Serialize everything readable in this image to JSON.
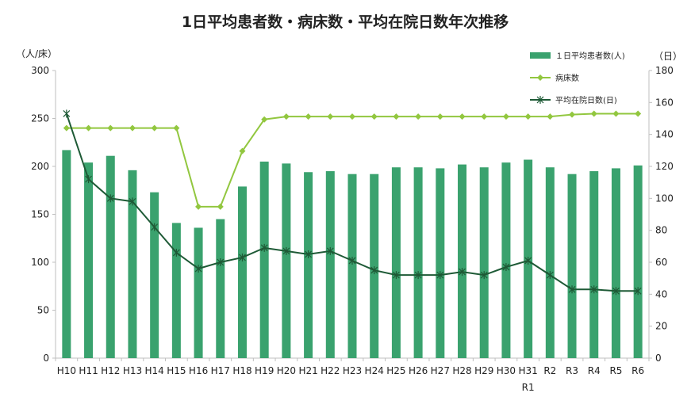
{
  "chart_data": {
    "type": "bar+line",
    "title": "1日平均患者数・病床数・平均在院日数年次推移",
    "left_axis_unit": "（人/床）",
    "right_axis_unit": "（日）",
    "left_ylim": [
      0,
      300
    ],
    "left_ticks": [
      "0",
      "50",
      "100",
      "150",
      "200",
      "250",
      "300"
    ],
    "right_ylim": [
      0,
      180
    ],
    "right_ticks": [
      "0",
      "20",
      "40",
      "60",
      "80",
      "100",
      "120",
      "140",
      "160",
      "180"
    ],
    "categories": [
      "H10",
      "H11",
      "H12",
      "H13",
      "H14",
      "H15",
      "H16",
      "H17",
      "H18",
      "H19",
      "H20",
      "H21",
      "H22",
      "H23",
      "H24",
      "H25",
      "H26",
      "H27",
      "H28",
      "H29",
      "H30",
      "H31",
      "R2",
      "R3",
      "R4",
      "R5",
      "R6"
    ],
    "category_sublabels": [
      "",
      "",
      "",
      "",
      "",
      "",
      "",
      "",
      "",
      "",
      "",
      "",
      "",
      "",
      "",
      "",
      "",
      "",
      "",
      "",
      "",
      "R1",
      "",
      "",
      "",
      "",
      ""
    ],
    "grid": false,
    "legend_position": "top-right",
    "series": [
      {
        "name": "１日平均患者数(人)",
        "type": "bar",
        "axis": "left",
        "color": "#3aa26e",
        "values": [
          217,
          204,
          211,
          196,
          173,
          141,
          136,
          145,
          179,
          205,
          203,
          194,
          195,
          192,
          192,
          199,
          199,
          198,
          202,
          199,
          204,
          207,
          199,
          192,
          195,
          198,
          201
        ]
      },
      {
        "name": "病床数",
        "type": "line",
        "axis": "left",
        "color": "#92c73f",
        "marker": "diamond",
        "values": [
          240,
          240,
          240,
          240,
          240,
          240,
          158,
          158,
          216,
          249,
          252,
          252,
          252,
          252,
          252,
          252,
          252,
          252,
          252,
          252,
          252,
          252,
          252,
          254,
          255,
          255,
          255
        ]
      },
      {
        "name": "平均在院日数(日)",
        "type": "line",
        "axis": "right",
        "color": "#1e5a36",
        "marker": "star",
        "values": [
          153,
          112,
          100,
          98,
          82,
          66,
          56,
          60,
          63,
          69,
          67,
          65,
          67,
          61,
          55,
          52,
          52,
          52,
          54,
          52,
          57,
          61,
          52,
          43,
          43,
          42,
          42
        ]
      }
    ]
  }
}
